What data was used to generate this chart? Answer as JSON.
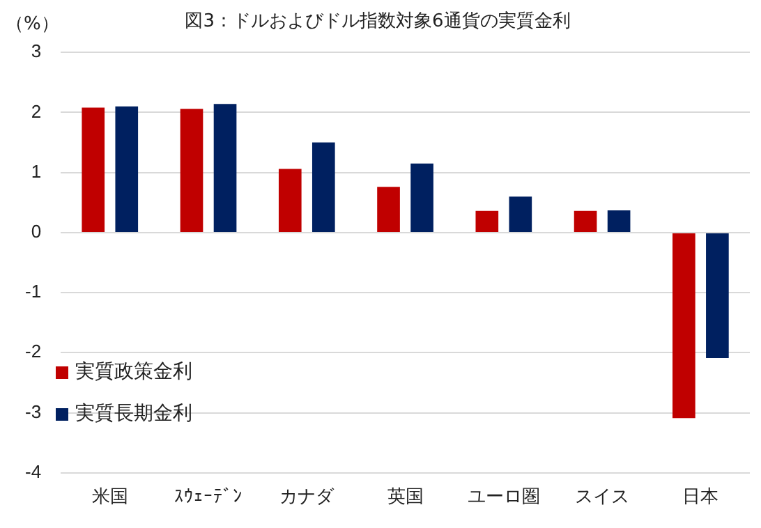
{
  "chart_data": {
    "type": "bar",
    "title": "図3：ドルおよびドル指数対象6通貨の実質金利",
    "ylabel": "（%）",
    "categories": [
      "米国",
      "ｽｳｪｰﾃﾞﾝ",
      "カナダ",
      "英国",
      "ユーロ圏",
      "スイス",
      "日本"
    ],
    "series": [
      {
        "name": "実質政策金利",
        "color": "#c00000",
        "values": [
          2.08,
          2.06,
          1.06,
          0.76,
          0.36,
          0.36,
          -3.09
        ]
      },
      {
        "name": "実質長期金利",
        "color": "#002060",
        "values": [
          2.1,
          2.14,
          1.5,
          1.15,
          0.6,
          0.37,
          -2.09
        ]
      }
    ],
    "ylim": [
      -4,
      3
    ],
    "yticks": [
      -4,
      -3,
      -2,
      -1,
      0,
      1,
      2,
      3
    ],
    "grid": "y",
    "legend": "bottom left"
  }
}
